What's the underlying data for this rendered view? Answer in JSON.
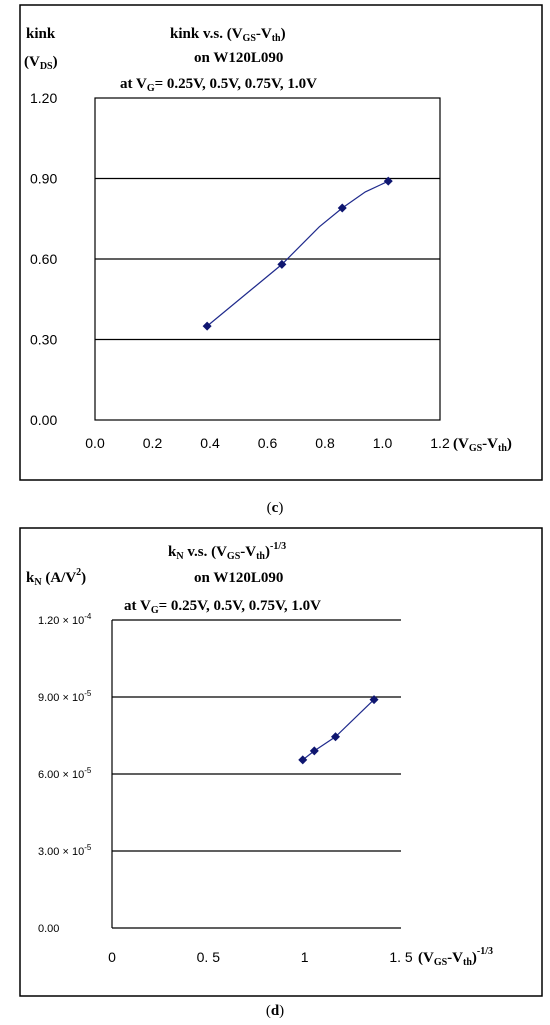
{
  "colors": {
    "series": "#1f2a8c",
    "marker": "#0f1670",
    "grid": "#000000"
  },
  "panels": [
    {
      "caption": "c",
      "chart_data": {
        "type": "line",
        "title_lines": [
          "kink v.s. (V",
          "GS",
          "-V",
          "th",
          ")"
        ],
        "title_line2": "on W120L090",
        "title_line3_pre": "at V",
        "title_line3_sub": "G",
        "title_line3_post": "= 0.25V, 0.5V, 0.75V, 1.0V",
        "ylabel_line1": "kink",
        "ylabel_line2_pre": "(V",
        "ylabel_line2_sub": "DS",
        "ylabel_line2_post": ")",
        "xlabel_pre": "(V",
        "xlabel_sub1": "GS",
        "xlabel_mid": "-V",
        "xlabel_sub2": "th",
        "xlabel_post": ")",
        "xlim": [
          0,
          1.2
        ],
        "ylim": [
          0,
          1.2
        ],
        "xticks": [
          "0.0",
          "0.2",
          "0.4",
          "0.6",
          "0.8",
          "1.0",
          "1.2"
        ],
        "yticks": [
          "0.00",
          "0.30",
          "0.60",
          "0.90",
          "1.20"
        ],
        "grid": "horizontal",
        "points": [
          {
            "x": 0.39,
            "y": 0.35
          },
          {
            "x": 0.65,
            "y": 0.58
          },
          {
            "x": 0.86,
            "y": 0.79
          },
          {
            "x": 1.02,
            "y": 0.89
          }
        ],
        "curve": [
          {
            "x": 0.39,
            "y": 0.35
          },
          {
            "x": 0.65,
            "y": 0.58
          },
          {
            "x": 0.78,
            "y": 0.72
          },
          {
            "x": 0.86,
            "y": 0.79
          },
          {
            "x": 0.94,
            "y": 0.85
          },
          {
            "x": 1.02,
            "y": 0.89
          }
        ]
      }
    },
    {
      "caption": "d",
      "chart_data": {
        "type": "line",
        "title_line1_pre": "k",
        "title_line1_sub": "N",
        "title_line1_mid": " v.s. (V",
        "title_line1_sub2": "GS",
        "title_line1_mid2": "-V",
        "title_line1_sub3": "th",
        "title_line1_post": ")",
        "title_line1_sup": "-1/3",
        "title_line2": "on W120L090",
        "title_line3_pre": "at V",
        "title_line3_sub": "G",
        "title_line3_post": "= 0.25V, 0.5V, 0.75V, 1.0V",
        "ylabel_pre": "k",
        "ylabel_sub": "N",
        "ylabel_mid": " (A/V",
        "ylabel_sup": "2",
        "ylabel_post": ")",
        "xlabel_pre": "(V",
        "xlabel_sub1": "GS",
        "xlabel_mid": "-V",
        "xlabel_sub2": "th",
        "xlabel_post": ")",
        "xlabel_sup": "-1/3",
        "xlim": [
          0,
          1.5
        ],
        "ylim": [
          0,
          0.00012
        ],
        "xticks": [
          "0",
          "0. 5",
          "1",
          "1. 5"
        ],
        "xtick_values": [
          0,
          0.5,
          1,
          1.5
        ],
        "yticks": [
          {
            "mant": "0.00",
            "exp": ""
          },
          {
            "mant": "3.00 × 10",
            "exp": "-5"
          },
          {
            "mant": "6.00 × 10",
            "exp": "-5"
          },
          {
            "mant": "9.00 × 10",
            "exp": "-5"
          },
          {
            "mant": "1.20 × 10",
            "exp": "-4"
          }
        ],
        "grid": "horizontal",
        "points": [
          {
            "x": 0.99,
            "y": 6.55e-05
          },
          {
            "x": 1.05,
            "y": 6.9e-05
          },
          {
            "x": 1.16,
            "y": 7.45e-05
          },
          {
            "x": 1.36,
            "y": 8.9e-05
          }
        ]
      }
    }
  ]
}
